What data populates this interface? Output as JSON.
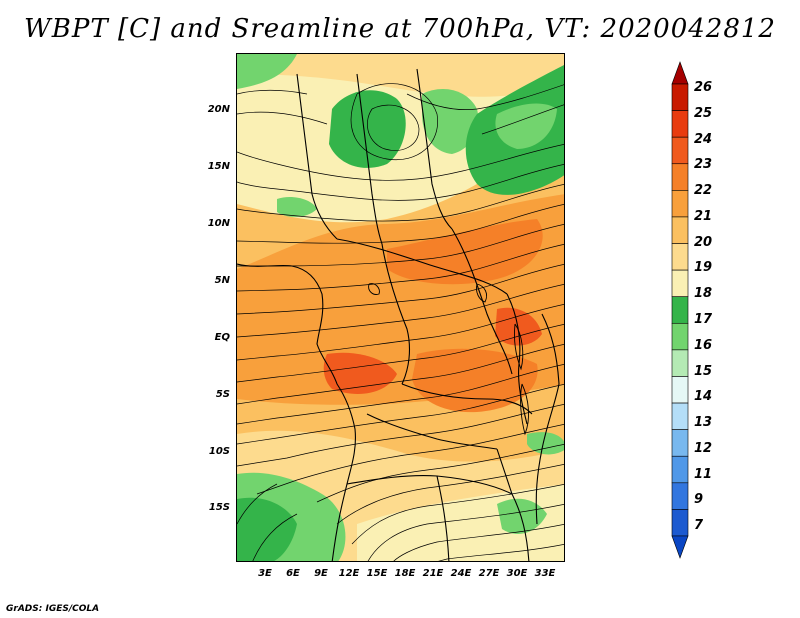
{
  "title": "WBPT [C] and Sreamline at 700hPa, VT: 2020042812",
  "footer": "GrADS: IGES/COLA",
  "lat_labels": [
    "20N",
    "15N",
    "10N",
    "5N",
    "EQ",
    "5S",
    "10S",
    "15S"
  ],
  "lon_labels": [
    "3E",
    "6E",
    "9E",
    "12E",
    "15E",
    "18E",
    "21E",
    "24E",
    "27E",
    "30E",
    "33E"
  ],
  "colorbar": {
    "labels": [
      "26",
      "25",
      "24",
      "23",
      "22",
      "21",
      "20",
      "19",
      "18",
      "17",
      "16",
      "15",
      "14",
      "13",
      "12",
      "11",
      "9",
      "7"
    ],
    "colors": [
      "#a50000",
      "#c81a00",
      "#e83c10",
      "#f05a1e",
      "#f58028",
      "#f8a03c",
      "#fbc060",
      "#fddb8e",
      "#faf0b4",
      "#34b44a",
      "#72d46e",
      "#b4eab4",
      "#e6f8f6",
      "#b4def8",
      "#78b8ef",
      "#5098e8",
      "#3276df",
      "#1c5ad0",
      "#0a46c4"
    ]
  }
}
